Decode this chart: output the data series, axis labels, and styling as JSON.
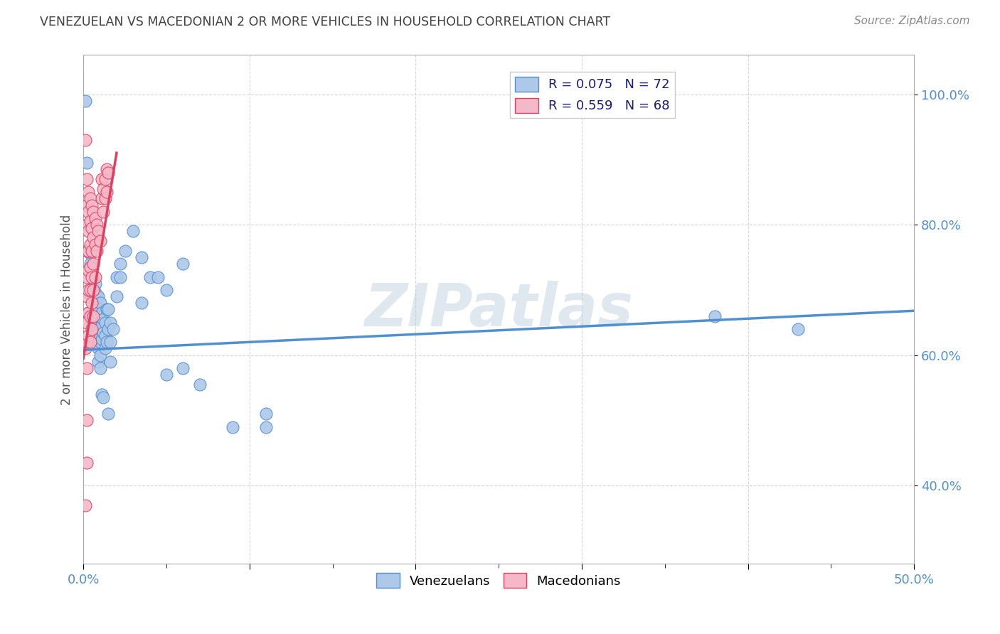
{
  "title": "VENEZUELAN VS MACEDONIAN 2 OR MORE VEHICLES IN HOUSEHOLD CORRELATION CHART",
  "source": "Source: ZipAtlas.com",
  "ylabel": "2 or more Vehicles in Household",
  "watermark": "ZIPatlas",
  "venezuelan_color": "#adc8e8",
  "macedonian_color": "#f4b8c8",
  "venezuelan_line_color": "#5090d0",
  "macedonian_line_color": "#e04060",
  "title_color": "#404040",
  "source_color": "#888888",
  "background_color": "#ffffff",
  "grid_color": "#cccccc",
  "xlim": [
    0.0,
    0.5
  ],
  "ylim": [
    0.28,
    1.06
  ],
  "ytick_vals": [
    0.4,
    0.6,
    0.8,
    1.0
  ],
  "ytick_labels": [
    "40.0%",
    "60.0%",
    "80.0%",
    "100.0%"
  ],
  "xtick_vals": [
    0.0,
    0.1,
    0.2,
    0.3,
    0.4,
    0.5
  ],
  "xtick_labels": [
    "0.0%",
    "",
    "",
    "",
    "",
    "50.0%"
  ],
  "venezuelan_line_x": [
    0.0,
    0.5
  ],
  "venezuelan_line_y": [
    0.608,
    0.668
  ],
  "macedonian_line_x": [
    0.0,
    0.02
  ],
  "macedonian_line_y": [
    0.595,
    0.91
  ],
  "venezuelan_scatter": [
    [
      0.001,
      0.99
    ],
    [
      0.002,
      0.895
    ],
    [
      0.003,
      0.695
    ],
    [
      0.003,
      0.665
    ],
    [
      0.004,
      0.755
    ],
    [
      0.004,
      0.74
    ],
    [
      0.005,
      0.695
    ],
    [
      0.005,
      0.65
    ],
    [
      0.005,
      0.635
    ],
    [
      0.006,
      0.685
    ],
    [
      0.006,
      0.67
    ],
    [
      0.006,
      0.64
    ],
    [
      0.006,
      0.625
    ],
    [
      0.007,
      0.71
    ],
    [
      0.007,
      0.695
    ],
    [
      0.007,
      0.68
    ],
    [
      0.007,
      0.655
    ],
    [
      0.008,
      0.69
    ],
    [
      0.008,
      0.67
    ],
    [
      0.008,
      0.655
    ],
    [
      0.008,
      0.645
    ],
    [
      0.009,
      0.69
    ],
    [
      0.009,
      0.66
    ],
    [
      0.009,
      0.64
    ],
    [
      0.009,
      0.625
    ],
    [
      0.009,
      0.61
    ],
    [
      0.009,
      0.59
    ],
    [
      0.01,
      0.68
    ],
    [
      0.01,
      0.66
    ],
    [
      0.01,
      0.64
    ],
    [
      0.01,
      0.62
    ],
    [
      0.01,
      0.6
    ],
    [
      0.01,
      0.58
    ],
    [
      0.011,
      0.665
    ],
    [
      0.011,
      0.645
    ],
    [
      0.011,
      0.625
    ],
    [
      0.011,
      0.54
    ],
    [
      0.012,
      0.655
    ],
    [
      0.012,
      0.635
    ],
    [
      0.012,
      0.535
    ],
    [
      0.013,
      0.65
    ],
    [
      0.013,
      0.63
    ],
    [
      0.013,
      0.61
    ],
    [
      0.014,
      0.67
    ],
    [
      0.014,
      0.62
    ],
    [
      0.015,
      0.67
    ],
    [
      0.015,
      0.64
    ],
    [
      0.015,
      0.51
    ],
    [
      0.016,
      0.65
    ],
    [
      0.016,
      0.62
    ],
    [
      0.016,
      0.59
    ],
    [
      0.018,
      0.64
    ],
    [
      0.02,
      0.72
    ],
    [
      0.02,
      0.69
    ],
    [
      0.022,
      0.74
    ],
    [
      0.022,
      0.72
    ],
    [
      0.025,
      0.76
    ],
    [
      0.03,
      0.79
    ],
    [
      0.035,
      0.75
    ],
    [
      0.035,
      0.68
    ],
    [
      0.04,
      0.72
    ],
    [
      0.045,
      0.72
    ],
    [
      0.05,
      0.7
    ],
    [
      0.05,
      0.57
    ],
    [
      0.06,
      0.74
    ],
    [
      0.06,
      0.58
    ],
    [
      0.07,
      0.555
    ],
    [
      0.09,
      0.49
    ],
    [
      0.11,
      0.51
    ],
    [
      0.11,
      0.49
    ],
    [
      0.38,
      0.66
    ],
    [
      0.43,
      0.64
    ]
  ],
  "macedonian_scatter": [
    [
      0.001,
      0.93
    ],
    [
      0.001,
      0.61
    ],
    [
      0.002,
      0.87
    ],
    [
      0.002,
      0.83
    ],
    [
      0.002,
      0.8
    ],
    [
      0.002,
      0.76
    ],
    [
      0.002,
      0.72
    ],
    [
      0.002,
      0.69
    ],
    [
      0.002,
      0.65
    ],
    [
      0.002,
      0.62
    ],
    [
      0.002,
      0.58
    ],
    [
      0.002,
      0.435
    ],
    [
      0.003,
      0.85
    ],
    [
      0.003,
      0.82
    ],
    [
      0.003,
      0.79
    ],
    [
      0.003,
      0.76
    ],
    [
      0.003,
      0.73
    ],
    [
      0.003,
      0.7
    ],
    [
      0.003,
      0.665
    ],
    [
      0.003,
      0.63
    ],
    [
      0.004,
      0.84
    ],
    [
      0.004,
      0.805
    ],
    [
      0.004,
      0.77
    ],
    [
      0.004,
      0.735
    ],
    [
      0.004,
      0.7
    ],
    [
      0.004,
      0.66
    ],
    [
      0.004,
      0.62
    ],
    [
      0.005,
      0.83
    ],
    [
      0.005,
      0.795
    ],
    [
      0.005,
      0.76
    ],
    [
      0.005,
      0.72
    ],
    [
      0.005,
      0.68
    ],
    [
      0.005,
      0.64
    ],
    [
      0.006,
      0.82
    ],
    [
      0.006,
      0.78
    ],
    [
      0.006,
      0.74
    ],
    [
      0.006,
      0.7
    ],
    [
      0.006,
      0.66
    ],
    [
      0.007,
      0.81
    ],
    [
      0.007,
      0.77
    ],
    [
      0.007,
      0.72
    ],
    [
      0.008,
      0.8
    ],
    [
      0.008,
      0.76
    ],
    [
      0.009,
      0.79
    ],
    [
      0.01,
      0.775
    ],
    [
      0.011,
      0.87
    ],
    [
      0.011,
      0.84
    ],
    [
      0.012,
      0.855
    ],
    [
      0.012,
      0.82
    ],
    [
      0.013,
      0.87
    ],
    [
      0.013,
      0.84
    ],
    [
      0.014,
      0.885
    ],
    [
      0.014,
      0.85
    ],
    [
      0.015,
      0.88
    ],
    [
      0.001,
      0.37
    ],
    [
      0.002,
      0.5
    ]
  ]
}
